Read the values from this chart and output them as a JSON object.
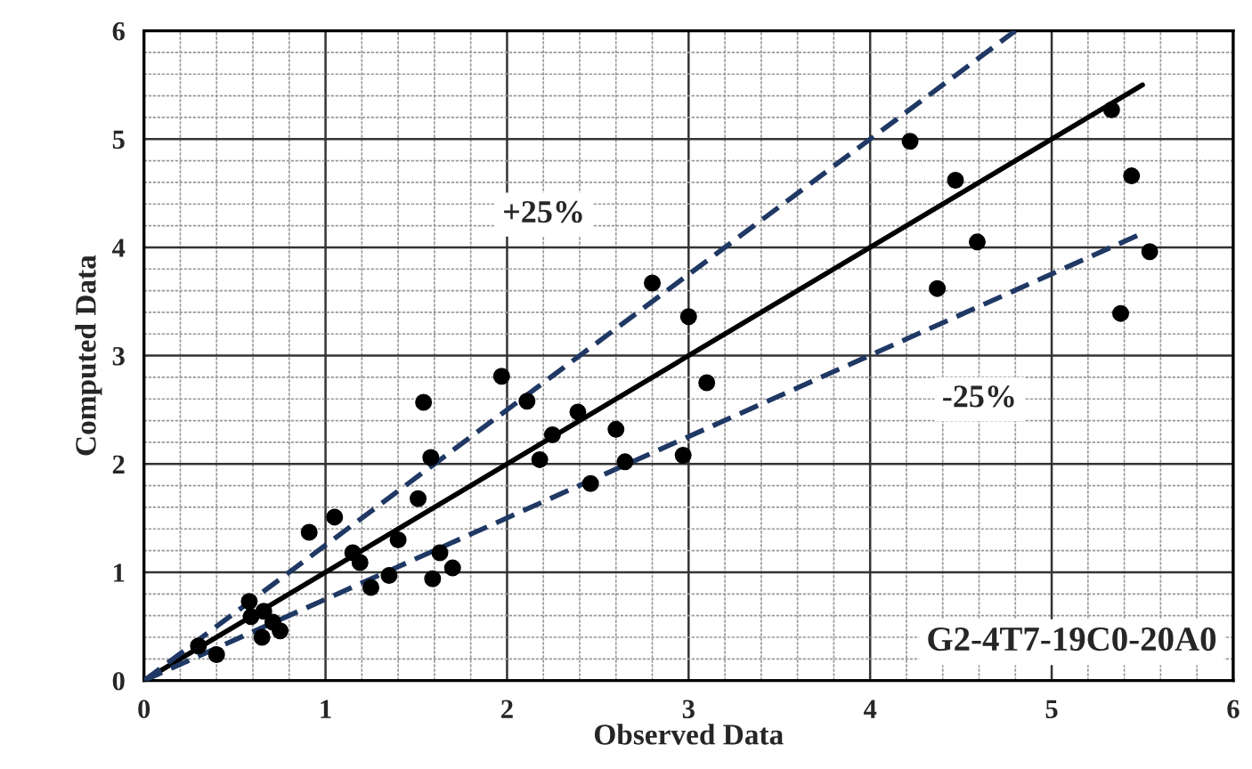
{
  "chart_data": {
    "type": "scatter",
    "xlabel": "Observed Data",
    "ylabel": "Computed Data",
    "xlim": [
      0,
      6
    ],
    "ylim": [
      0,
      6
    ],
    "xticks": [
      0,
      1,
      2,
      3,
      4,
      5,
      6
    ],
    "yticks": [
      0,
      1,
      2,
      3,
      4,
      5,
      6
    ],
    "grid": true,
    "legend": false,
    "series": [
      {
        "color": "#000000",
        "marker": "circle",
        "x": [
          4.22,
          4.47,
          4.59,
          4.37,
          5.33,
          5.44,
          5.54,
          5.38,
          3.1,
          2.8,
          3.0,
          1.97,
          2.11,
          1.54,
          2.39,
          2.25,
          2.6,
          2.18,
          1.58,
          2.97,
          2.65,
          2.46,
          1.51,
          1.05,
          0.91,
          1.4,
          1.15,
          1.19,
          1.63,
          1.7,
          1.35,
          1.59,
          1.25,
          0.58,
          0.59,
          0.66,
          0.71,
          0.65,
          0.75,
          0.3,
          0.4
        ],
        "values": [
          4.98,
          4.62,
          4.05,
          3.62,
          5.27,
          4.66,
          3.96,
          3.39,
          2.75,
          3.67,
          3.36,
          2.81,
          2.58,
          2.57,
          2.48,
          2.27,
          2.32,
          2.04,
          2.06,
          2.08,
          2.02,
          1.82,
          1.68,
          1.51,
          1.37,
          1.3,
          1.18,
          1.09,
          1.18,
          1.04,
          0.97,
          0.94,
          0.86,
          0.73,
          0.59,
          0.64,
          0.54,
          0.4,
          0.46,
          0.32,
          0.24
        ]
      },
      {
        "type": "line",
        "color": "#000000",
        "line_style": "solid",
        "x": [
          0,
          5.5
        ],
        "values": [
          0,
          5.5
        ]
      },
      {
        "type": "line",
        "color": "#1f3864",
        "line_style": "dashed",
        "x": [
          0,
          4.8
        ],
        "values": [
          0,
          6
        ]
      },
      {
        "type": "line",
        "color": "#1f3864",
        "line_style": "dashed",
        "x": [
          0,
          5.5
        ],
        "values": [
          0,
          4.13
        ]
      }
    ],
    "annotations": [
      "+25%",
      "-25%",
      "G2-4T7-19C0-20A0"
    ]
  }
}
